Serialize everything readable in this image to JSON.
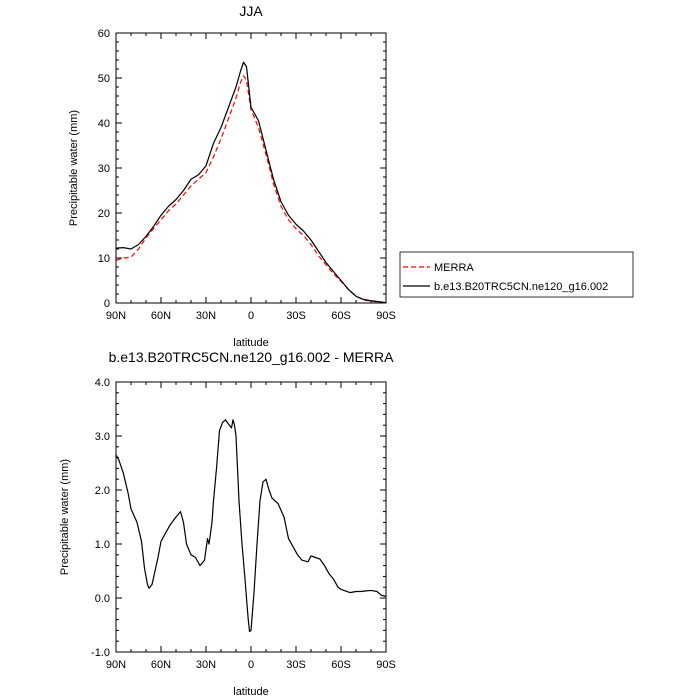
{
  "chart_data": [
    {
      "type": "line",
      "title": "JJA",
      "xlabel": "latitude",
      "ylabel": "Precipitable water (mm)",
      "x_ticks": [
        90,
        60,
        30,
        0,
        -30,
        -60,
        -90
      ],
      "x_tick_labels": [
        "90N",
        "60N",
        "30N",
        "0",
        "30S",
        "60S",
        "90S"
      ],
      "y_ticks": [
        0,
        10,
        20,
        30,
        40,
        50,
        60
      ],
      "y_tick_labels": [
        "0",
        "10",
        "20",
        "30",
        "40",
        "50",
        "60"
      ],
      "xlim": [
        90,
        -90
      ],
      "ylim": [
        0,
        60
      ],
      "legend_position": "right",
      "series": [
        {
          "name": "MERRA",
          "style": "dashed",
          "color": "#ff0000",
          "x": [
            90,
            85,
            80,
            75,
            70,
            65,
            60,
            55,
            50,
            45,
            40,
            35,
            30,
            25,
            20,
            15,
            10,
            7,
            5,
            3,
            0,
            -5,
            -10,
            -15,
            -20,
            -25,
            -30,
            -35,
            -40,
            -45,
            -50,
            -55,
            -60,
            -65,
            -70,
            -75,
            -80,
            -85,
            -90
          ],
          "values": [
            9.5,
            10.0,
            10.2,
            12.0,
            14.5,
            16.5,
            18.5,
            20.5,
            22.0,
            24.0,
            26.0,
            27.5,
            29.0,
            32.5,
            36.5,
            41.0,
            45.5,
            49.0,
            50.5,
            49.5,
            43.0,
            39.0,
            33.0,
            26.5,
            21.5,
            18.5,
            16.5,
            15.0,
            13.0,
            10.5,
            8.5,
            6.5,
            4.8,
            3.0,
            1.5,
            0.7,
            0.4,
            0.2,
            0.0
          ]
        },
        {
          "name": "b.e13.B20TRC5CN.ne120_g16.002",
          "style": "solid",
          "color": "#000000",
          "x": [
            90,
            85,
            80,
            75,
            70,
            65,
            60,
            55,
            50,
            45,
            40,
            35,
            30,
            25,
            20,
            15,
            10,
            7,
            5,
            3,
            0,
            -5,
            -10,
            -15,
            -20,
            -25,
            -30,
            -35,
            -40,
            -45,
            -50,
            -55,
            -60,
            -65,
            -70,
            -75,
            -80,
            -85,
            -90
          ],
          "values": [
            12.2,
            12.3,
            12.0,
            13.0,
            14.8,
            17.0,
            19.5,
            21.5,
            23.0,
            25.0,
            27.5,
            28.5,
            30.5,
            35.5,
            39.0,
            43.5,
            48.0,
            51.5,
            53.5,
            52.5,
            43.5,
            40.5,
            34.0,
            27.5,
            22.5,
            19.5,
            17.5,
            16.0,
            14.0,
            11.5,
            9.0,
            7.0,
            5.0,
            3.0,
            1.5,
            0.8,
            0.5,
            0.3,
            0.1
          ]
        }
      ]
    },
    {
      "type": "line",
      "title": "b.e13.B20TRC5CN.ne120_g16.002 - MERRA",
      "xlabel": "latitude",
      "ylabel": "Precipitable water (mm)",
      "x_ticks": [
        90,
        60,
        30,
        0,
        -30,
        -60,
        -90
      ],
      "x_tick_labels": [
        "90N",
        "60N",
        "30N",
        "0",
        "30S",
        "60S",
        "90S"
      ],
      "y_ticks": [
        -1,
        0,
        1,
        2,
        3,
        4
      ],
      "y_tick_labels": [
        "-1.0",
        "0.0",
        "1.0",
        "2.0",
        "3.0",
        "4.0"
      ],
      "xlim": [
        90,
        -90
      ],
      "ylim": [
        -1,
        4
      ],
      "series": [
        {
          "name": "b.e13.B20TRC5CN.ne120_g16.002 - MERRA",
          "style": "solid",
          "color": "#000000",
          "x": [
            90,
            88,
            85,
            82,
            80,
            76,
            73,
            71,
            69,
            68,
            66,
            64,
            62,
            60,
            57,
            54,
            50,
            47,
            45,
            43,
            40,
            37,
            34,
            31,
            29,
            28,
            26,
            25,
            23,
            21,
            19,
            17,
            15,
            13,
            12,
            11,
            10,
            9,
            8,
            6,
            4,
            3,
            2,
            1,
            0,
            -2,
            -4,
            -6,
            -8,
            -10,
            -12,
            -14,
            -16,
            -18,
            -22,
            -25,
            -28,
            -31,
            -34,
            -38,
            -40,
            -43,
            -46,
            -49,
            -52,
            -55,
            -58,
            -60,
            -62,
            -66,
            -70,
            -73,
            -76,
            -80,
            -84,
            -87,
            -90
          ],
          "values": [
            2.65,
            2.55,
            2.3,
            1.95,
            1.65,
            1.4,
            1.05,
            0.55,
            0.25,
            0.18,
            0.25,
            0.5,
            0.75,
            1.05,
            1.2,
            1.35,
            1.5,
            1.6,
            1.4,
            1.0,
            0.8,
            0.75,
            0.6,
            0.7,
            1.1,
            1.0,
            1.4,
            1.8,
            2.4,
            3.1,
            3.25,
            3.3,
            3.22,
            3.15,
            3.3,
            3.2,
            3.0,
            2.4,
            1.8,
            1.0,
            0.35,
            0.0,
            -0.35,
            -0.62,
            -0.6,
            0.1,
            1.0,
            1.8,
            2.15,
            2.2,
            2.0,
            1.85,
            1.8,
            1.75,
            1.5,
            1.1,
            0.95,
            0.8,
            0.7,
            0.67,
            0.78,
            0.75,
            0.72,
            0.6,
            0.45,
            0.35,
            0.2,
            0.16,
            0.14,
            0.1,
            0.12,
            0.12,
            0.13,
            0.14,
            0.12,
            0.05,
            0.03
          ]
        }
      ]
    }
  ]
}
